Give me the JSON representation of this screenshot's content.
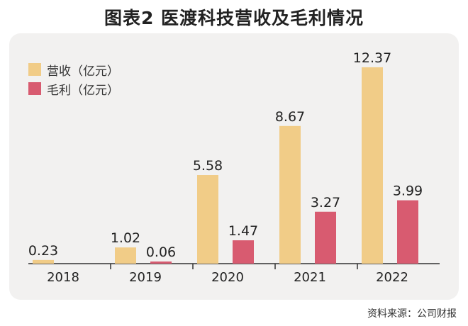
{
  "title": "图表2  医渡科技营收及毛利情况",
  "source": "资料来源：公司财报",
  "colors": {
    "revenue": "#f1cc87",
    "profit": "#d85b70",
    "axis": "#333333",
    "panel": "#f2f1f0"
  },
  "chart_data": {
    "type": "bar",
    "categories": [
      "2018",
      "2019",
      "2020",
      "2021",
      "2022"
    ],
    "series": [
      {
        "name": "营收（亿元）",
        "values": [
          0.23,
          1.02,
          5.58,
          8.67,
          12.37
        ],
        "labels": [
          "0.23",
          "1.02",
          "5.58",
          "8.67",
          "12.37"
        ]
      },
      {
        "name": "毛利（亿元）",
        "values": [
          null,
          0.06,
          1.47,
          3.27,
          3.99
        ],
        "labels": [
          "",
          "0.06",
          "1.47",
          "3.27",
          "3.99"
        ]
      }
    ],
    "legend_position": "top-left",
    "grid": false
  }
}
